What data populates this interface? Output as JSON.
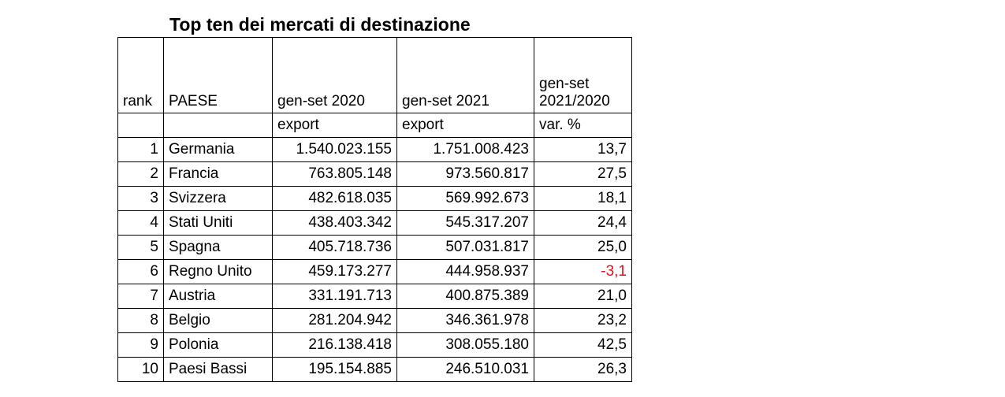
{
  "title": "Top ten dei mercati di destinazione",
  "columns": {
    "rank": "rank",
    "paese": "PAESE",
    "col2020": "gen-set 2020",
    "col2021": "gen-set 2021",
    "var_line1": "gen-set",
    "var_line2": "2021/2020"
  },
  "subheaders": {
    "paese": "",
    "col2020": "export",
    "col2021": "export",
    "var": "var. %"
  },
  "negative_color": "#e0101a",
  "rows": [
    {
      "rank": "1",
      "paese": "Germania",
      "export_2020": "1.540.023.155",
      "export_2021": "1.751.008.423",
      "var": "13,7"
    },
    {
      "rank": "2",
      "paese": "Francia",
      "export_2020": "763.805.148",
      "export_2021": "973.560.817",
      "var": "27,5"
    },
    {
      "rank": "3",
      "paese": "Svizzera",
      "export_2020": "482.618.035",
      "export_2021": "569.992.673",
      "var": "18,1"
    },
    {
      "rank": "4",
      "paese": "Stati Uniti",
      "export_2020": "438.403.342",
      "export_2021": "545.317.207",
      "var": "24,4"
    },
    {
      "rank": "5",
      "paese": "Spagna",
      "export_2020": "405.718.736",
      "export_2021": "507.031.817",
      "var": "25,0"
    },
    {
      "rank": "6",
      "paese": "Regno Unito",
      "export_2020": "459.173.277",
      "export_2021": "444.958.937",
      "var": "-3,1"
    },
    {
      "rank": "7",
      "paese": "Austria",
      "export_2020": "331.191.713",
      "export_2021": "400.875.389",
      "var": "21,0"
    },
    {
      "rank": "8",
      "paese": "Belgio",
      "export_2020": "281.204.942",
      "export_2021": "346.361.978",
      "var": "23,2"
    },
    {
      "rank": "9",
      "paese": "Polonia",
      "export_2020": "216.138.418",
      "export_2021": "308.055.180",
      "var": "42,5"
    },
    {
      "rank": "10",
      "paese": "Paesi Bassi",
      "export_2020": "195.154.885",
      "export_2021": "246.510.031",
      "var": "26,3"
    }
  ]
}
